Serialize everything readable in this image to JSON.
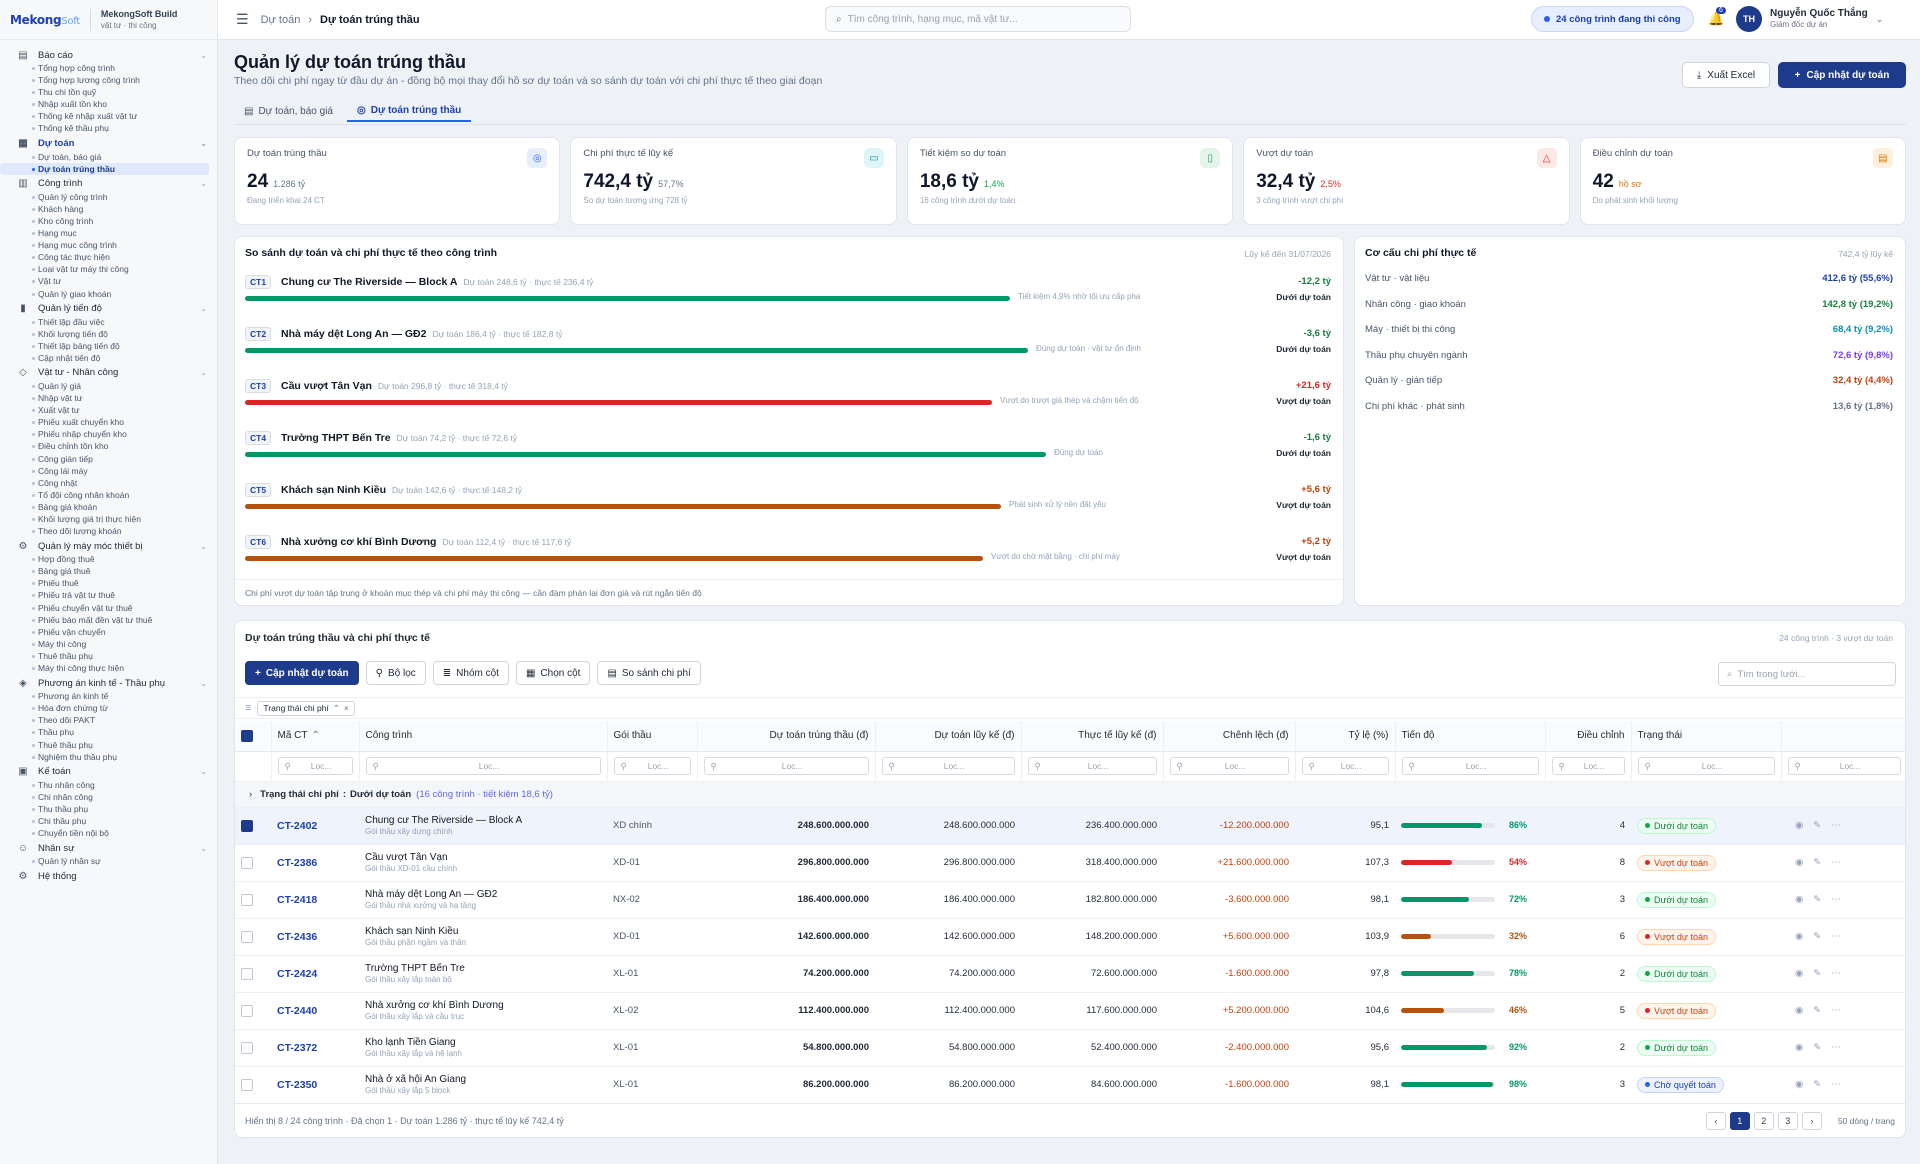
{
  "brand": {
    "logo_main": "Mekong",
    "logo_sub": "Soft",
    "app_name": "MekongSoft Build",
    "app_sub": "vật tư · thi công"
  },
  "sidebar": [
    {
      "label": "Báo cáo",
      "icon": "doc-icon",
      "items": [
        "Tổng hợp công trình",
        "Tổng hợp lương công trình",
        "Thu chi tồn quỹ",
        "Nhập xuất tồn kho",
        "Thống kê nhập xuất vật tư",
        "Thống kê thầu phụ"
      ]
    },
    {
      "label": "Dự toán",
      "icon": "calc-icon",
      "active": true,
      "items": [
        "Dự toán, báo giá",
        "Dự toán trúng thầu"
      ]
    },
    {
      "label": "Công trình",
      "icon": "map-icon",
      "items": [
        "Quản lý công trình",
        "Khách hàng",
        "Kho công trình",
        "Hạng mục",
        "Hạng mục công trình",
        "Công tác thực hiện",
        "Loại vật tư máy thi công",
        "Vật tư",
        "Quản lý giao khoán"
      ]
    },
    {
      "label": "Quản lý tiến độ",
      "icon": "chart-icon",
      "items": [
        "Thiết lập đầu việc",
        "Khối lượng tiến độ",
        "Thiết lập bảng tiến độ",
        "Cập nhật tiến độ"
      ]
    },
    {
      "label": "Vật tư - Nhân công",
      "icon": "box-icon",
      "items": [
        "Quản lý giá",
        "Nhập vật tư",
        "Xuất vật tư",
        "Phiếu xuất chuyển kho",
        "Phiếu nhập chuyển kho",
        "Điều chỉnh tồn kho",
        "Công gián tiếp",
        "Công lái máy",
        "Công nhật",
        "Tổ đội công nhân khoán",
        "Bảng giá khoán",
        "Khối lượng giá trị thực hiện",
        "Theo dõi lương khoán"
      ]
    },
    {
      "label": "Quản lý máy móc thiết bị",
      "icon": "gear-icon",
      "items": [
        "Hợp đồng thuê",
        "Bảng giá thuê",
        "Phiếu thuê",
        "Phiếu trả vật tư thuê",
        "Phiếu chuyển vật tư thuê",
        "Phiếu báo mất đền vật tư thuê",
        "Phiếu vận chuyển",
        "Máy thi công",
        "Thuê thầu phụ",
        "Máy thi công thực hiện"
      ]
    },
    {
      "label": "Phương án kinh tế - Thầu phụ",
      "icon": "tag-icon",
      "items": [
        "Phương án kinh tế",
        "Hóa đơn chứng từ",
        "Theo dõi PAKT",
        "Thầu phụ",
        "Thuê thầu phụ",
        "Nghiệm thu thầu phụ"
      ]
    },
    {
      "label": "Kế toán",
      "icon": "money-icon",
      "items": [
        "Thu nhân công",
        "Chi nhân công",
        "Thu thầu phụ",
        "Chi thầu phụ",
        "Chuyển tiền nội bộ"
      ]
    },
    {
      "label": "Nhân sự",
      "icon": "users-icon",
      "items": [
        "Quản lý nhân sự"
      ]
    },
    {
      "label": "Hệ thống",
      "icon": "gear-icon",
      "items": []
    }
  ],
  "topbar": {
    "crumb_parent": "Dự toán",
    "crumb_current": "Dự toán trúng thầu",
    "search_placeholder": "Tìm công trình, hạng mục, mã vật tư...",
    "status_pill": "24 công trình đang thi công",
    "bell_count": "6",
    "user_initials": "TH",
    "user_name": "Nguyễn Quốc Thắng",
    "user_role": "Giám đốc dự án"
  },
  "page": {
    "title": "Quản lý dự toán trúng thầu",
    "subtitle": "Theo dõi chi phí ngay từ đầu dự án - đồng bộ mọi thay đổi hồ sơ dự toán và so sánh dự toán với chi phí thực tế theo giai đoạn",
    "export_label": "Xuất Excel",
    "update_label": "Cập nhật dự toán",
    "tabs": [
      "Dự toán, báo giá",
      "Dự toán trúng thầu"
    ]
  },
  "kpis": [
    {
      "title": "Dự toán trúng thầu",
      "value": "24",
      "sub": "1.286 tỷ",
      "note": "Đang triển khai 24 CT",
      "icon": "check-circle-icon",
      "color": "#2563eb",
      "bg": "#e8effc",
      "subcolor": "#64748b"
    },
    {
      "title": "Chi phí thực tế lũy kế",
      "value": "742,4 tỷ",
      "sub": "57,7%",
      "note": "So dự toán tương ứng 728 tỷ",
      "icon": "cash-icon",
      "color": "#0891b2",
      "bg": "#e0f5f8",
      "subcolor": "#64748b"
    },
    {
      "title": "Tiết kiệm so dự toán",
      "value": "18,6 tỷ",
      "sub": "1,4%",
      "note": "16 công trình dưới dự toán",
      "icon": "bar-chart-icon",
      "color": "#16a34a",
      "bg": "#e4f6ea",
      "subcolor": "#16a34a"
    },
    {
      "title": "Vượt dự toán",
      "value": "32,4 tỷ",
      "sub": "2,5%",
      "note": "3 công trình vượt chi phí",
      "icon": "warning-icon",
      "color": "#dc2626",
      "bg": "#fde8e8",
      "subcolor": "#dc2626"
    },
    {
      "title": "Điều chỉnh dự toán",
      "value": "42",
      "sub": "hồ sơ",
      "note": "Do phát sinh khối lượng",
      "icon": "file-icon",
      "color": "#d97706",
      "bg": "#fdf0df",
      "subcolor": "#d97706"
    }
  ],
  "comparison": {
    "title": "So sánh dự toán và chi phí thực tế theo công trình",
    "asof": "Lũy kế đến 31/07/2026",
    "footer": "Chi phí vượt dự toán tập trung ở khoản mục thép và chi phí máy thi công — cần đàm phán lại đơn giá và rút ngắn tiến độ",
    "rows": [
      {
        "code": "CT1",
        "name": "Chung cư The Riverside — Block A",
        "detail": "Dự toán 248,6 tỷ · thực tế 236,4 tỷ",
        "diff": "-12,2 tỷ",
        "note": "Tiết kiệm 4,9% nhờ tối ưu cấp pha",
        "status": "Dưới dự toán",
        "fill": 0.85,
        "color": "#059669",
        "diffcolor": "#15803d"
      },
      {
        "code": "CT2",
        "name": "Nhà máy dệt Long An — GĐ2",
        "detail": "Dự toán 186,4 tỷ · thực tế 182,8 tỷ",
        "diff": "-3,6 tỷ",
        "note": "Đúng dự toán · vật tư ổn định",
        "status": "Dưới dự toán",
        "fill": 0.87,
        "color": "#059669",
        "diffcolor": "#15803d"
      },
      {
        "code": "CT3",
        "name": "Cầu vượt Tân Vạn",
        "detail": "Dự toán 296,8 tỷ · thực tế 318,4 tỷ",
        "diff": "+21,6 tỷ",
        "note": "Vượt do trượt giá thép và chậm tiến độ",
        "status": "Vượt dự toán",
        "fill": 0.83,
        "color": "#dc2626",
        "diffcolor": "#dc2626"
      },
      {
        "code": "CT4",
        "name": "Trường THPT Bến Tre",
        "detail": "Dự toán 74,2 tỷ · thực tế 72,6 tỷ",
        "diff": "-1,6 tỷ",
        "note": "Đúng dự toán",
        "status": "Dưới dự toán",
        "fill": 0.89,
        "color": "#059669",
        "diffcolor": "#15803d"
      },
      {
        "code": "CT5",
        "name": "Khách sạn Ninh Kiều",
        "detail": "Dự toán 142,6 tỷ · thực tế 148,2 tỷ",
        "diff": "+5,6 tỷ",
        "note": "Phát sinh xử lý nền đất yếu",
        "status": "Vượt dự toán",
        "fill": 0.84,
        "color": "#b45309",
        "diffcolor": "#c2410c"
      },
      {
        "code": "CT6",
        "name": "Nhà xưởng cơ khí Bình Dương",
        "detail": "Dự toán 112,4 tỷ · thực tế 117,6 tỷ",
        "diff": "+5,2 tỷ",
        "note": "Vượt do chờ mặt bằng · chi phí máy",
        "status": "Vượt dự toán",
        "fill": 0.82,
        "color": "#b45309",
        "diffcolor": "#c2410c"
      }
    ]
  },
  "structure": {
    "title": "Cơ cấu chi phí thực tế",
    "total": "742,4 tỷ lũy kế",
    "rows": [
      {
        "label": "Vật tư · vật liệu",
        "value": "412,6 tỷ (55,6%)",
        "color": "#1e40af"
      },
      {
        "label": "Nhân công · giao khoán",
        "value": "142,8 tỷ (19,2%)",
        "color": "#15803d"
      },
      {
        "label": "Máy · thiết bị thi công",
        "value": "68,4 tỷ (9,2%)",
        "color": "#0891b2"
      },
      {
        "label": "Thầu phụ chuyên ngành",
        "value": "72,6 tỷ (9,8%)",
        "color": "#7c3aed"
      },
      {
        "label": "Quản lý · gián tiếp",
        "value": "32,4 tỷ (4,4%)",
        "color": "#c2410c"
      },
      {
        "label": "Chi phí khác · phát sinh",
        "value": "13,6 tỷ (1,8%)",
        "color": "#64748b"
      }
    ]
  },
  "grid": {
    "title": "Dự toán trúng thầu và chi phí thực tế",
    "summary": "24 công trình · 3 vượt dự toán",
    "toolbar": [
      "Cập nhật dự toán",
      "Bộ lọc",
      "Nhóm cột",
      "Chọn cột",
      "So sánh chi phí"
    ],
    "search_placeholder": "Tìm trong lưới...",
    "chip": "Trạng thái chi phí",
    "filter_placeholder": "Lọc...",
    "columns": [
      "Mã CT",
      "Công trình",
      "Gói thầu",
      "Dự toán trúng thầu (đ)",
      "Dự toán lũy kế (đ)",
      "Thực tế lũy kế (đ)",
      "Chênh lệch (đ)",
      "Tỷ lệ (%)",
      "Tiến độ",
      "Điều chỉnh",
      "Trạng thái"
    ],
    "group_label": "Trạng thái chi phí",
    "group_value": "Dưới dự toán",
    "group_meta": "(16 công trình · tiết kiệm 18,6 tỷ)",
    "rows": [
      {
        "code": "CT-2402",
        "name": "Chung cư The Riverside — Block A",
        "pkg_desc": "Gói thầu xây dựng chính",
        "pkg": "XD chính",
        "bid": "248.600.000.000",
        "cum": "248.600.000.000",
        "act": "236.400.000.000",
        "diff": "-12.200.000.000",
        "ratio": "95,1",
        "prog": 0.86,
        "prog_label": "86%",
        "adj": "4",
        "status": "Dưới dự toán",
        "sel": true,
        "color": "#059669",
        "diffc": "neg"
      },
      {
        "code": "CT-2386",
        "name": "Cầu vượt Tân Vạn",
        "pkg_desc": "Gói thầu XD-01 cầu chính",
        "pkg": "XD-01",
        "bid": "296.800.000.000",
        "cum": "296.800.000.000",
        "act": "318.400.000.000",
        "diff": "+21.600.000.000",
        "ratio": "107,3",
        "prog": 0.54,
        "prog_label": "54%",
        "adj": "8",
        "status": "Vượt dự toán",
        "color": "#dc2626",
        "diffc": "pos"
      },
      {
        "code": "CT-2418",
        "name": "Nhà máy dệt Long An — GĐ2",
        "pkg_desc": "Gói thầu nhà xưởng và hạ tầng",
        "pkg": "NX-02",
        "bid": "186.400.000.000",
        "cum": "186.400.000.000",
        "act": "182.800.000.000",
        "diff": "-3.600.000.000",
        "ratio": "98,1",
        "prog": 0.72,
        "prog_label": "72%",
        "adj": "3",
        "status": "Dưới dự toán",
        "color": "#059669",
        "diffc": "neg"
      },
      {
        "code": "CT-2436",
        "name": "Khách sạn Ninh Kiều",
        "pkg_desc": "Gói thầu phần ngầm và thân",
        "pkg": "XD-01",
        "bid": "142.600.000.000",
        "cum": "142.600.000.000",
        "act": "148.200.000.000",
        "diff": "+5.600.000.000",
        "ratio": "103,9",
        "prog": 0.32,
        "prog_label": "32%",
        "adj": "6",
        "status": "Vượt dự toán",
        "color": "#b45309",
        "diffc": "pos"
      },
      {
        "code": "CT-2424",
        "name": "Trường THPT Bến Tre",
        "pkg_desc": "Gói thầu xây lắp toàn bộ",
        "pkg": "XL-01",
        "bid": "74.200.000.000",
        "cum": "74.200.000.000",
        "act": "72.600.000.000",
        "diff": "-1.600.000.000",
        "ratio": "97,8",
        "prog": 0.78,
        "prog_label": "78%",
        "adj": "2",
        "status": "Dưới dự toán",
        "color": "#059669",
        "diffc": "neg"
      },
      {
        "code": "CT-2440",
        "name": "Nhà xưởng cơ khí Bình Dương",
        "pkg_desc": "Gói thầu xây lắp và cầu trục",
        "pkg": "XL-02",
        "bid": "112.400.000.000",
        "cum": "112.400.000.000",
        "act": "117.600.000.000",
        "diff": "+5.200.000.000",
        "ratio": "104,6",
        "prog": 0.46,
        "prog_label": "46%",
        "adj": "5",
        "status": "Vượt dự toán",
        "color": "#b45309",
        "diffc": "pos"
      },
      {
        "code": "CT-2372",
        "name": "Kho lạnh Tiền Giang",
        "pkg_desc": "Gói thầu xây lắp và hệ lạnh",
        "pkg": "XL-01",
        "bid": "54.800.000.000",
        "cum": "54.800.000.000",
        "act": "52.400.000.000",
        "diff": "-2.400.000.000",
        "ratio": "95,6",
        "prog": 0.92,
        "prog_label": "92%",
        "adj": "2",
        "status": "Dưới dự toán",
        "color": "#059669",
        "diffc": "neg"
      },
      {
        "code": "CT-2350",
        "name": "Nhà ở xã hội An Giang",
        "pkg_desc": "Gói thầu xây lắp 5 block",
        "pkg": "XL-01",
        "bid": "86.200.000.000",
        "cum": "86.200.000.000",
        "act": "84.600.000.000",
        "diff": "-1.600.000.000",
        "ratio": "98,1",
        "prog": 0.98,
        "prog_label": "98%",
        "adj": "3",
        "status": "Chờ quyết toán",
        "color": "#059669",
        "diffc": "neg"
      }
    ],
    "footer": "Hiển thị 8 / 24 công trình · Đã chọn 1 · Dự toán 1.286 tỷ · thực tế lũy kế 742,4 tỷ",
    "pages": [
      "‹",
      "1",
      "2",
      "3",
      "›"
    ],
    "per_page": "50 dòng / trang"
  }
}
